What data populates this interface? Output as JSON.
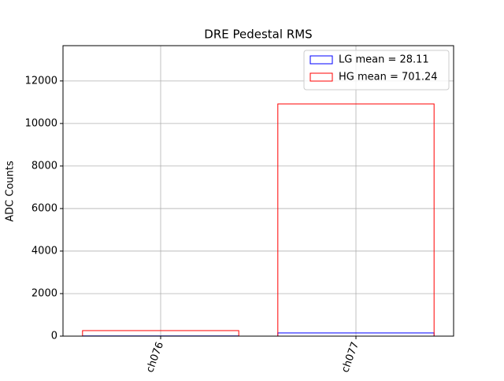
{
  "chart_data": {
    "type": "bar",
    "title": "DRE Pedestal RMS",
    "y_label": "ADC Counts",
    "categories": [
      "ch076",
      "ch077"
    ],
    "series": [
      {
        "name": "LG mean = 28.11",
        "color": "#0000ff",
        "values": [
          10,
          150
        ]
      },
      {
        "name": "HG mean = 701.24",
        "color": "#ff0000",
        "values": [
          260,
          10920
        ]
      }
    ],
    "ylim": [
      0,
      13660
    ],
    "yticks": [
      0,
      2000,
      4000,
      6000,
      8000,
      10000,
      12000
    ],
    "grid": true,
    "legend": "upper right"
  }
}
